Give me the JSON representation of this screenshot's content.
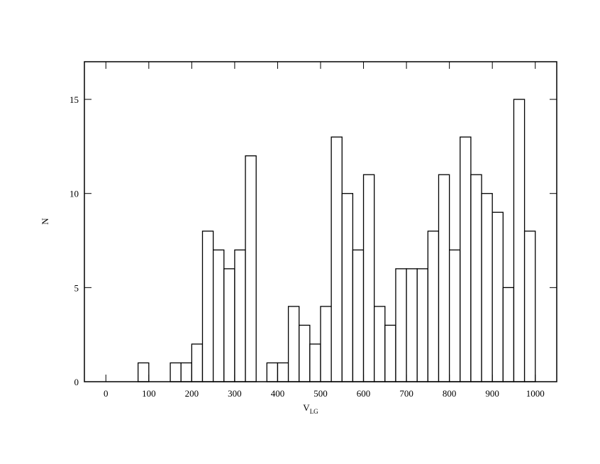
{
  "chart_data": {
    "type": "histogram",
    "x_label": {
      "text": "V",
      "subscript": "LG"
    },
    "y_label": "N",
    "bins": [
      0,
      25,
      50,
      75,
      100,
      125,
      150,
      175,
      200,
      225,
      250,
      275,
      300,
      325,
      350,
      375,
      400,
      425,
      450,
      475,
      500,
      525,
      550,
      575,
      600,
      625,
      650,
      675,
      700,
      725,
      750,
      775,
      800,
      825,
      850,
      875,
      900,
      925,
      950,
      975,
      1000
    ],
    "counts": [
      0,
      0,
      0,
      1,
      0,
      0,
      1,
      1,
      2,
      8,
      7,
      6,
      7,
      12,
      0,
      1,
      1,
      4,
      3,
      2,
      4,
      13,
      10,
      7,
      11,
      4,
      3,
      6,
      6,
      6,
      8,
      11,
      7,
      13,
      11,
      10,
      9,
      5,
      15,
      8
    ],
    "color": "#ffffff",
    "xlim": [
      -50,
      1050
    ],
    "ylim": [
      0,
      17
    ],
    "xticks": [
      0,
      100,
      200,
      300,
      400,
      500,
      600,
      700,
      800,
      900,
      1000
    ],
    "yticks": [
      0,
      5,
      10,
      15
    ]
  }
}
